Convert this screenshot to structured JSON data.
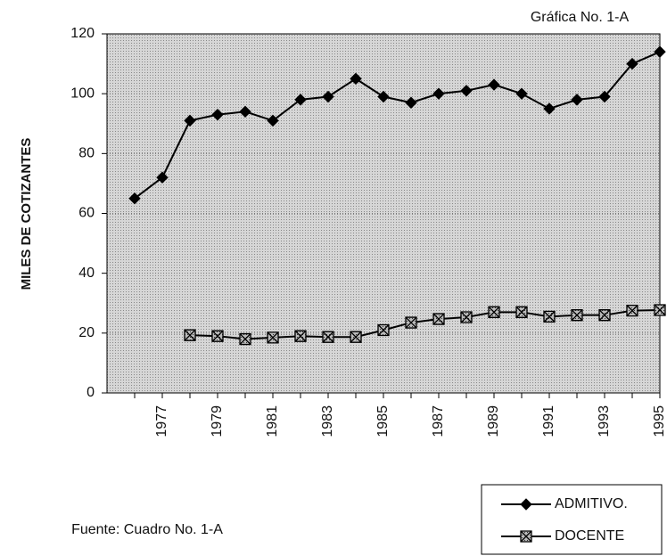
{
  "chart_data": {
    "type": "line",
    "annotations": [
      "Gráfica No. 1-A",
      "Fuente: Cuadro No. 1-A"
    ],
    "ylabel": "MILES DE COTIZANTES",
    "categories": [
      null,
      "1977",
      null,
      "1979",
      null,
      "1981",
      null,
      "1983",
      null,
      "1985",
      null,
      "1987",
      null,
      "1989",
      null,
      "1991",
      null,
      "1993",
      null,
      "1995"
    ],
    "series": [
      {
        "name": "ADMITIVO.",
        "color": "#000000",
        "marker": "diamond",
        "values": [
          65,
          72,
          91,
          93,
          94,
          91,
          98,
          99,
          105,
          99,
          97,
          100,
          101,
          103,
          100,
          95,
          98,
          99,
          110,
          114
        ]
      },
      {
        "name": "DOCENTE",
        "color": "#000000",
        "marker": "square",
        "values": [
          null,
          null,
          19.3,
          19,
          18,
          18.5,
          19,
          18.7,
          18.7,
          21,
          23.5,
          24.7,
          25.3,
          27,
          27,
          25.5,
          26,
          26,
          27.5,
          27.7
        ]
      }
    ],
    "ylim": [
      0,
      120
    ],
    "yticks": [
      0,
      20,
      40,
      60,
      80,
      100,
      120
    ],
    "grid": true,
    "legend": "lower right"
  }
}
